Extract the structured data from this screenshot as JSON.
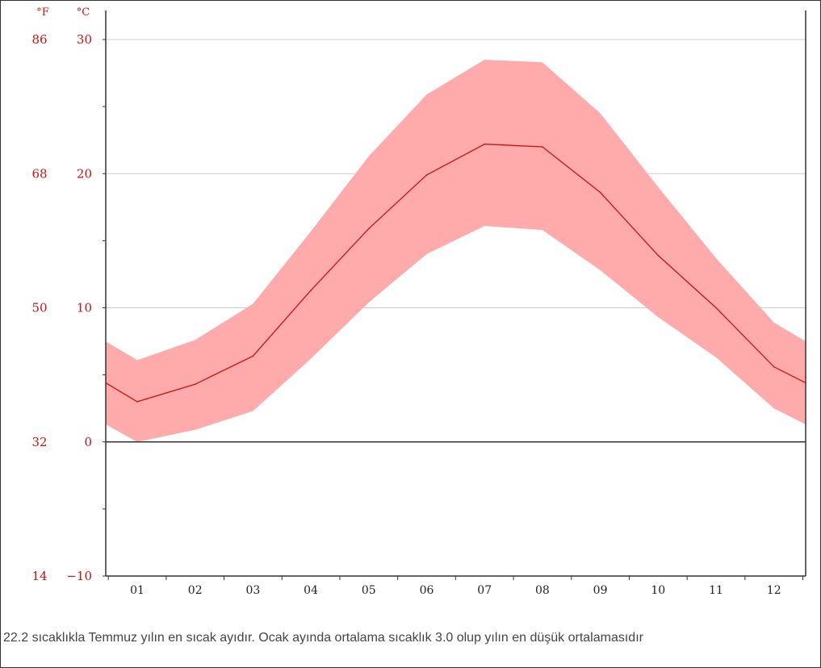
{
  "chart_data": {
    "type": "area",
    "categories": [
      "01",
      "02",
      "03",
      "04",
      "05",
      "06",
      "07",
      "08",
      "09",
      "10",
      "11",
      "12"
    ],
    "units": {
      "left": "°F",
      "right": "°C"
    },
    "y_ticks_c": [
      "30",
      "20",
      "10",
      "0",
      "−10"
    ],
    "y_ticks_f": [
      "86",
      "68",
      "50",
      "32",
      "14"
    ],
    "ylim": [
      -10,
      30
    ],
    "grid": true,
    "series": [
      {
        "values": [
          3.0,
          4.3,
          6.4,
          11.3,
          15.9,
          19.9,
          22.2,
          22.0,
          18.6,
          13.9,
          10.0,
          5.6
        ]
      }
    ],
    "band": {
      "low": [
        0.0,
        0.9,
        2.3,
        6.2,
        10.4,
        14.0,
        16.1,
        15.8,
        12.8,
        9.3,
        6.3,
        2.5
      ],
      "high": [
        6.1,
        7.6,
        10.3,
        15.7,
        21.3,
        25.9,
        28.5,
        28.3,
        24.5,
        19.0,
        13.7,
        8.9
      ]
    },
    "edge_values": {
      "start": {
        "mean": 4.4,
        "low": 1.3,
        "high": 7.5
      },
      "end": {
        "mean": 4.4,
        "low": 1.3,
        "high": 7.5
      }
    },
    "colors": {
      "band": "#ffabab",
      "line": "#cc1111",
      "labels": "#cc1111",
      "axis": "#333333",
      "grid": "#cccccc"
    }
  },
  "caption": "22.2 sıcaklıkla Temmuz yılın en sıcak ayıdır. Ocak ayında ortalama sıcaklık 3.0 olup yılın en düşük ortalamasıdır"
}
